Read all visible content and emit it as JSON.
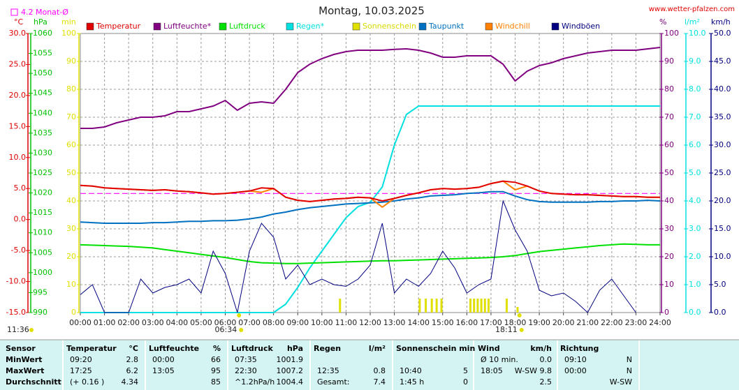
{
  "chart_data": {
    "type": "line",
    "title": "Montag, 10.03.2025",
    "source": "www.wetter-pfalzen.com",
    "monthly_avg": {
      "label": "4.2 Monat-Ø",
      "value": 4.2,
      "color": "#ff00ff",
      "axis": 0
    },
    "annotations": [
      {
        "text": "11:36",
        "x": null
      },
      {
        "text": "06:34",
        "x": 6.57
      },
      {
        "text": "18:11",
        "x": 18.18
      }
    ],
    "xlim": [
      0,
      24
    ],
    "xticks": [
      {
        "value": 0,
        "label": "00:00"
      },
      {
        "value": 1,
        "label": "01:00"
      },
      {
        "value": 2,
        "label": "02:00"
      },
      {
        "value": 3,
        "label": "03:00"
      },
      {
        "value": 4,
        "label": "04:00"
      },
      {
        "value": 5,
        "label": "05:00"
      },
      {
        "value": 6,
        "label": "06:00"
      },
      {
        "value": 7,
        "label": "07:00"
      },
      {
        "value": 8,
        "label": "08:00"
      },
      {
        "value": 9,
        "label": "09:00"
      },
      {
        "value": 10,
        "label": "10:00"
      },
      {
        "value": 11,
        "label": "11:00"
      },
      {
        "value": 12,
        "label": "12:00"
      },
      {
        "value": 13,
        "label": "13:00"
      },
      {
        "value": 14,
        "label": "14:00"
      },
      {
        "value": 15,
        "label": "15:00"
      },
      {
        "value": 16,
        "label": "16:00"
      },
      {
        "value": 17,
        "label": "17:00"
      },
      {
        "value": 18,
        "label": "18:00"
      },
      {
        "value": 19,
        "label": "19:00"
      },
      {
        "value": 20,
        "label": "20:00"
      },
      {
        "value": 21,
        "label": "21:00"
      },
      {
        "value": 22,
        "label": "22:00"
      },
      {
        "value": 23,
        "label": "23:00"
      },
      {
        "value": 24,
        "label": "24:00"
      }
    ],
    "grid": true,
    "axes": [
      {
        "label": "°C",
        "color": "#e00000",
        "side": "left",
        "lim": [
          -15,
          30
        ],
        "ticks": [
          {
            "value": -15,
            "label": "-15.0"
          },
          {
            "value": -10,
            "label": "-10.0"
          },
          {
            "value": -5,
            "label": "-5.0"
          },
          {
            "value": 0,
            "label": "0.0"
          },
          {
            "value": 5,
            "label": "5.0"
          },
          {
            "value": 10,
            "label": "10.0"
          },
          {
            "value": 15,
            "label": "15.0"
          },
          {
            "value": 20,
            "label": "20.0"
          },
          {
            "value": 25,
            "label": "25.0"
          },
          {
            "value": 30,
            "label": "30.0"
          }
        ]
      },
      {
        "label": "hPa",
        "color": "#00c000",
        "side": "left",
        "lim": [
          990,
          1060
        ],
        "ticks": [
          990,
          995,
          1000,
          1005,
          1010,
          1015,
          1020,
          1025,
          1030,
          1035,
          1040,
          1045,
          1050,
          1055,
          1060
        ]
      },
      {
        "label": "min",
        "color": "#e0e000",
        "side": "left",
        "lim": [
          0,
          100
        ],
        "ticks": [
          0,
          10,
          20,
          30,
          40,
          50,
          60,
          70,
          80,
          90,
          100
        ]
      },
      {
        "label": "%",
        "color": "#800080",
        "side": "right",
        "lim": [
          0,
          100
        ],
        "ticks": [
          0,
          10,
          20,
          30,
          40,
          50,
          60,
          70,
          80,
          90,
          100
        ]
      },
      {
        "label": "l/m²",
        "color": "#00e0e0",
        "side": "right",
        "lim": [
          0,
          10
        ],
        "ticks": [
          {
            "value": 0,
            "label": "0.0"
          },
          {
            "value": 1,
            "label": "1.0"
          },
          {
            "value": 2,
            "label": "2.0"
          },
          {
            "value": 3,
            "label": "3.0"
          },
          {
            "value": 4,
            "label": "4.0"
          },
          {
            "value": 5,
            "label": "5.0"
          },
          {
            "value": 6,
            "label": "6.0"
          },
          {
            "value": 7,
            "label": "7.0"
          },
          {
            "value": 8,
            "label": "8.0"
          },
          {
            "value": 9,
            "label": "9.0"
          },
          {
            "value": 10,
            "label": "10.0"
          }
        ]
      },
      {
        "label": "km/h",
        "color": "#000080",
        "side": "right",
        "lim": [
          0,
          50
        ],
        "ticks": [
          {
            "value": 0,
            "label": "0.0"
          },
          {
            "value": 5,
            "label": "5.0"
          },
          {
            "value": 10,
            "label": "10.0"
          },
          {
            "value": 15,
            "label": "15.0"
          },
          {
            "value": 20,
            "label": "20.0"
          },
          {
            "value": 25,
            "label": "25.0"
          },
          {
            "value": 30,
            "label": "30.0"
          },
          {
            "value": 35,
            "label": "35.0"
          },
          {
            "value": 40,
            "label": "40.0"
          },
          {
            "value": 45,
            "label": "45.0"
          },
          {
            "value": 50,
            "label": "50.0"
          }
        ]
      }
    ],
    "x": [
      0,
      0.5,
      1,
      1.5,
      2,
      2.5,
      3,
      3.5,
      4,
      4.5,
      5,
      5.5,
      6,
      6.5,
      7,
      7.5,
      8,
      8.5,
      9,
      9.5,
      10,
      10.5,
      11,
      11.5,
      12,
      12.5,
      13,
      13.5,
      14,
      14.5,
      15,
      15.5,
      16,
      16.5,
      17,
      17.5,
      18,
      18.5,
      19,
      19.5,
      20,
      20.5,
      21,
      21.5,
      22,
      22.5,
      23,
      23.5,
      24
    ],
    "series": [
      {
        "name": "Temperatur",
        "color": "#e00000",
        "axis": 0,
        "values": [
          5.5,
          5.4,
          5.1,
          5.0,
          4.9,
          4.8,
          4.7,
          4.8,
          4.6,
          4.5,
          4.3,
          4.1,
          4.2,
          4.4,
          4.6,
          5.1,
          5.0,
          3.6,
          3.1,
          2.9,
          3.1,
          3.3,
          3.4,
          3.6,
          3.5,
          3.0,
          3.4,
          3.9,
          4.3,
          4.8,
          5.0,
          4.9,
          5.0,
          5.2,
          5.8,
          6.2,
          6.0,
          5.4,
          4.6,
          4.2,
          4.1,
          4.0,
          4.0,
          3.9,
          3.8,
          3.7,
          3.7,
          3.6,
          3.6
        ]
      },
      {
        "name": "Luftfeuchte*",
        "color": "#800080",
        "axis": 3,
        "values": [
          66,
          66,
          66.5,
          68,
          69,
          70,
          70,
          70.5,
          72,
          72,
          73,
          74,
          76,
          72.5,
          75,
          75.5,
          75,
          80,
          86,
          89,
          91,
          92.5,
          93.5,
          94,
          94,
          94,
          94.3,
          94.5,
          94,
          93,
          91.5,
          91.5,
          92,
          92,
          92,
          89,
          83,
          86.5,
          88.5,
          89.5,
          91,
          92,
          93,
          93.5,
          94,
          94,
          94,
          94.5,
          95
        ]
      },
      {
        "name": "Luftdruck",
        "color": "#00e000",
        "axis": 1,
        "values": [
          1007,
          1006.9,
          1006.8,
          1006.7,
          1006.6,
          1006.4,
          1006.2,
          1005.8,
          1005.4,
          1005,
          1004.6,
          1004.2,
          1003.8,
          1003.3,
          1002.8,
          1002.5,
          1002.4,
          1002.3,
          1002.3,
          1002.4,
          1002.5,
          1002.6,
          1002.7,
          1002.8,
          1002.9,
          1003,
          1003,
          1003.1,
          1003.2,
          1003.3,
          1003.4,
          1003.5,
          1003.6,
          1003.7,
          1003.8,
          1004,
          1004.3,
          1004.8,
          1005.3,
          1005.6,
          1005.9,
          1006.2,
          1006.5,
          1006.8,
          1007,
          1007.2,
          1007.1,
          1007,
          1007
        ]
      },
      {
        "name": "Regen*",
        "color": "#00e0e0",
        "axis": 4,
        "values": [
          0,
          0,
          0,
          0,
          0,
          0,
          0,
          0,
          0,
          0,
          0,
          0,
          0,
          0,
          0,
          0,
          0,
          0.3,
          0.9,
          1.6,
          2.2,
          2.8,
          3.4,
          3.8,
          3.95,
          4.5,
          6.0,
          7.1,
          7.4,
          7.4,
          7.4,
          7.4,
          7.4,
          7.4,
          7.4,
          7.4,
          7.4,
          7.4,
          7.4,
          7.4,
          7.4,
          7.4,
          7.4,
          7.4,
          7.4,
          7.4,
          7.4,
          7.4,
          7.4
        ]
      },
      {
        "name": "Sonnenschein",
        "color": "#e0e000",
        "axis": 2,
        "kind": "bar",
        "x": [
          10.75,
          14.05,
          14.3,
          14.55,
          14.75,
          14.95,
          16.15,
          16.3,
          16.45,
          16.6,
          16.75,
          16.9,
          17.65,
          18.1
        ],
        "values": [
          5,
          5,
          5,
          5,
          5,
          5,
          5,
          5,
          5,
          5,
          5,
          5,
          5,
          2
        ]
      },
      {
        "name": "Taupunkt",
        "color": "#0070c0",
        "axis": 0,
        "values": [
          -0.4,
          -0.5,
          -0.6,
          -0.6,
          -0.6,
          -0.6,
          -0.5,
          -0.5,
          -0.4,
          -0.3,
          -0.3,
          -0.2,
          -0.2,
          -0.1,
          0.1,
          0.4,
          0.9,
          1.2,
          1.6,
          1.9,
          2.1,
          2.3,
          2.5,
          2.6,
          2.7,
          2.8,
          3.0,
          3.3,
          3.5,
          3.8,
          3.9,
          4.0,
          4.2,
          4.3,
          4.5,
          4.5,
          3.8,
          3.2,
          2.9,
          2.8,
          2.8,
          2.8,
          2.8,
          2.9,
          2.9,
          3.0,
          3.0,
          3.1,
          3.0
        ]
      },
      {
        "name": "Windchill",
        "color": "#ff8000",
        "axis": 0,
        "values": [
          5.5,
          5.4,
          5.1,
          5.0,
          4.9,
          4.8,
          4.7,
          4.8,
          4.6,
          4.5,
          4.3,
          4.1,
          4.2,
          4.4,
          4.6,
          4.4,
          5.0,
          3.6,
          3.1,
          2.9,
          3.1,
          3.3,
          3.4,
          3.6,
          3.5,
          2.0,
          3.4,
          3.9,
          4.3,
          4.8,
          5.0,
          4.9,
          5.0,
          5.2,
          5.8,
          6.2,
          4.8,
          5.4,
          4.6,
          4.2,
          4.1,
          4.0,
          4.0,
          3.9,
          3.8,
          3.7,
          3.7,
          3.6,
          3.6
        ]
      },
      {
        "name": "Windböen",
        "color": "#000080",
        "axis": 5,
        "values": [
          3.2,
          5,
          0,
          0,
          0,
          6,
          3.5,
          4.5,
          5,
          6,
          3.5,
          11,
          7,
          0,
          11,
          16,
          13.5,
          6,
          8.5,
          5,
          6,
          5,
          4.7,
          6,
          8.5,
          16,
          3.5,
          6,
          4.7,
          7,
          11,
          8,
          3.5,
          5,
          6,
          20,
          14.8,
          11,
          4,
          3,
          3.5,
          2,
          0,
          4,
          6,
          3,
          0,
          null,
          null
        ]
      }
    ]
  },
  "table": {
    "header": [
      "Sensor",
      "Temperatur",
      "°C",
      "Luftfeuchte",
      "%",
      "Luftdruck",
      "hPa",
      "Regen",
      "l/m²",
      "Sonnenschein min",
      "Wind",
      "km/h",
      "Richtung"
    ],
    "rows": [
      [
        "MinWert",
        "09:20",
        "2.8",
        "00:00",
        "66",
        "07:35",
        "1001.9",
        null,
        null,
        null,
        null,
        "Ø 10 min.",
        "0.0",
        "09:10",
        "N"
      ],
      [
        "MaxWert",
        "17:25",
        "6.2",
        "13:05",
        "95",
        "22:30",
        "1007.2",
        "12:35",
        "0.8",
        "10:40",
        "5",
        "18:05",
        "W-SW 9.8",
        "00:00",
        "N"
      ],
      [
        "Durchschnitt",
        "(+ 0.16 )",
        "4.34",
        null,
        "85",
        "^1.2hPa/h",
        "1004.4",
        "Gesamt:",
        "7.4",
        "1:45 h",
        "0",
        null,
        "2.5",
        null,
        "W-SW"
      ]
    ]
  }
}
